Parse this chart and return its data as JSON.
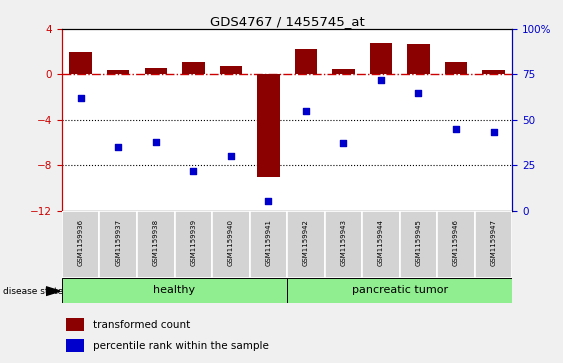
{
  "title": "GDS4767 / 1455745_at",
  "samples": [
    "GSM1159936",
    "GSM1159937",
    "GSM1159938",
    "GSM1159939",
    "GSM1159940",
    "GSM1159941",
    "GSM1159942",
    "GSM1159943",
    "GSM1159944",
    "GSM1159945",
    "GSM1159946",
    "GSM1159947"
  ],
  "transformed_count": [
    2.0,
    0.4,
    0.6,
    1.1,
    0.7,
    -9.0,
    2.2,
    0.5,
    2.8,
    2.7,
    1.1,
    0.4
  ],
  "percentile_rank_pct": [
    62,
    35,
    38,
    22,
    30,
    5,
    55,
    37,
    72,
    65,
    45,
    43
  ],
  "ylim_left": [
    -12,
    4
  ],
  "ylim_right": [
    0,
    100
  ],
  "group_healthy_label": "healthy",
  "group_tumor_label": "pancreatic tumor",
  "group_color": "#90EE90",
  "bar_color": "#8B0000",
  "dot_color": "#0000CD",
  "hline_color": "#CC0000",
  "dotline_color": "black",
  "legend_items": [
    {
      "label": "transformed count",
      "color": "#8B0000"
    },
    {
      "label": "percentile rank within the sample",
      "color": "#0000CD"
    }
  ],
  "fig_bg": "#f0f0f0",
  "plot_bg": "white"
}
